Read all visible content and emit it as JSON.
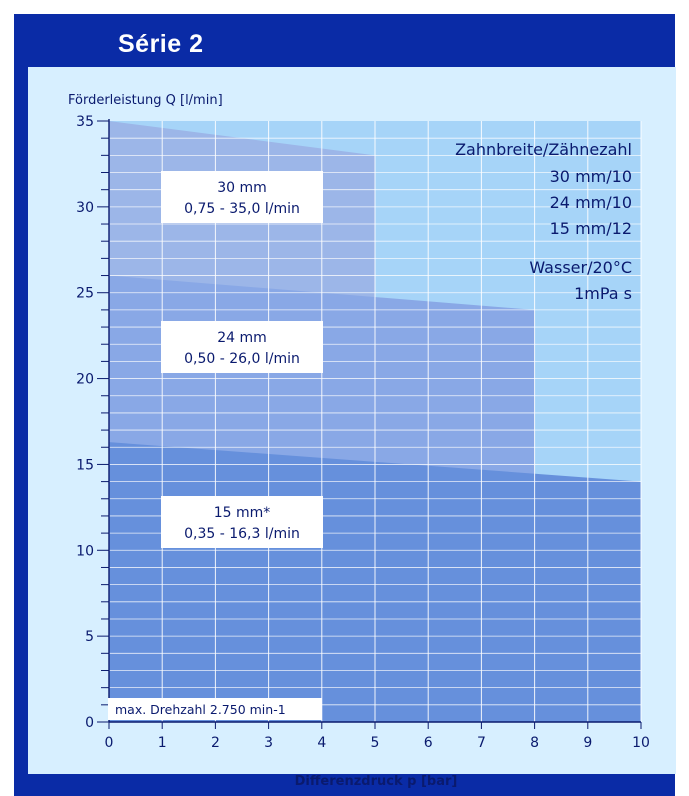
{
  "header": {
    "title": "Série 2"
  },
  "chart_data": {
    "type": "area",
    "title": "",
    "ylabel": "Förderleistung Q [l/min]",
    "xlabel": "Differenzdruck p [bar]",
    "xlim": [
      0,
      10
    ],
    "ylim": [
      0,
      35
    ],
    "x_ticks": [
      0,
      1,
      2,
      3,
      4,
      5,
      6,
      7,
      8,
      9,
      10
    ],
    "y_ticks": [
      0,
      5,
      10,
      15,
      20,
      25,
      30,
      35
    ],
    "x_tick_labels": [
      "0",
      "1",
      "2",
      "3",
      "4",
      "5",
      "6",
      "7",
      "8",
      "9",
      "10"
    ],
    "y_tick_labels": [
      "0",
      "5",
      "10",
      "15",
      "20",
      "25",
      "30",
      "35"
    ],
    "y_minor_step": 1,
    "grid": true,
    "series": [
      {
        "name": "30 mm",
        "range_label": "0,75 - 35,0 l/min",
        "color": "#9cb6e8",
        "x": [
          0,
          5
        ],
        "y_top": [
          35.0,
          33.0
        ]
      },
      {
        "name": "24 mm",
        "range_label": "0,50 - 26,0 l/min",
        "color": "#89a8e6",
        "x": [
          0,
          8
        ],
        "y_top": [
          26.0,
          24.0
        ]
      },
      {
        "name": "15 mm*",
        "range_label": "0,35 - 16,3 l/min",
        "color": "#6690dc",
        "x": [
          0,
          10
        ],
        "y_top": [
          16.3,
          14.0
        ]
      }
    ],
    "legend": {
      "heading": "Zahnbreite/Zähnezahl",
      "entries": [
        "30 mm/10",
        "24 mm/10",
        "15 mm/12"
      ],
      "medium": "Wasser/20°C",
      "viscosity": "1mPa s"
    },
    "footnote": "max. Drehzahl 2.750 min-1"
  }
}
